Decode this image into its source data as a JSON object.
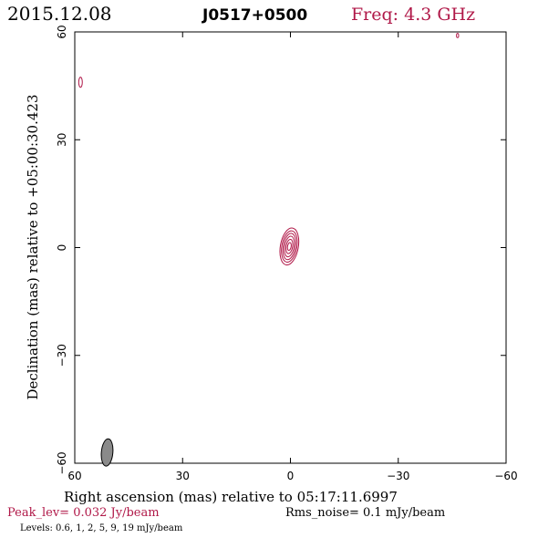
{
  "header": {
    "date": "2015.12.08",
    "source": "J0517+0500",
    "freq": "Freq: 4.3 GHz"
  },
  "footer": {
    "peak": "Peak_lev=  0.032 Jy/beam",
    "rms": "Rms_noise=  0.1 mJy/beam",
    "levels": "Levels: 0.6,    1,    2,    5,    9,   19 mJy/beam"
  },
  "colors": {
    "contour": "#b01848",
    "beam_fill": "#8a8a8a",
    "axes": "#000000"
  },
  "chart_data": {
    "type": "contour",
    "xlabel": "Right ascension (mas) relative to 05:17:11.6997",
    "ylabel": "Declination (mas) relative to +05:00:30.423",
    "xlim": [
      60,
      -60
    ],
    "ylim": [
      -60,
      60
    ],
    "xticks": [
      60,
      30,
      0,
      -30,
      -60
    ],
    "yticks": [
      -60,
      -30,
      0,
      30,
      60
    ],
    "x_tick_labels": [
      "60",
      "30",
      "0",
      "−30",
      "−60"
    ],
    "y_tick_labels": [
      "−60",
      "−30",
      "0",
      "30",
      "60"
    ],
    "contour_levels_mJy": [
      0.6,
      1,
      2,
      5,
      9,
      19
    ],
    "core": {
      "x": 0.3,
      "y": 0.3,
      "rings": [
        {
          "a": 0.5,
          "b": 1.1
        },
        {
          "a": 0.9,
          "b": 2.0
        },
        {
          "a": 1.3,
          "b": 2.9
        },
        {
          "a": 1.7,
          "b": 3.7
        },
        {
          "a": 2.1,
          "b": 4.4
        },
        {
          "a": 2.5,
          "b": 5.2
        }
      ],
      "tilt_deg": 10
    },
    "spurious": [
      {
        "x": 58.4,
        "y": 46.0,
        "a": 0.5,
        "b": 1.4
      },
      {
        "x": -46.5,
        "y": 59.0,
        "a": 0.3,
        "b": 0.6
      }
    ],
    "beam": {
      "x": 51.0,
      "y": -57.0,
      "a": 1.0,
      "b": 2.0,
      "tilt_deg": 5
    }
  }
}
